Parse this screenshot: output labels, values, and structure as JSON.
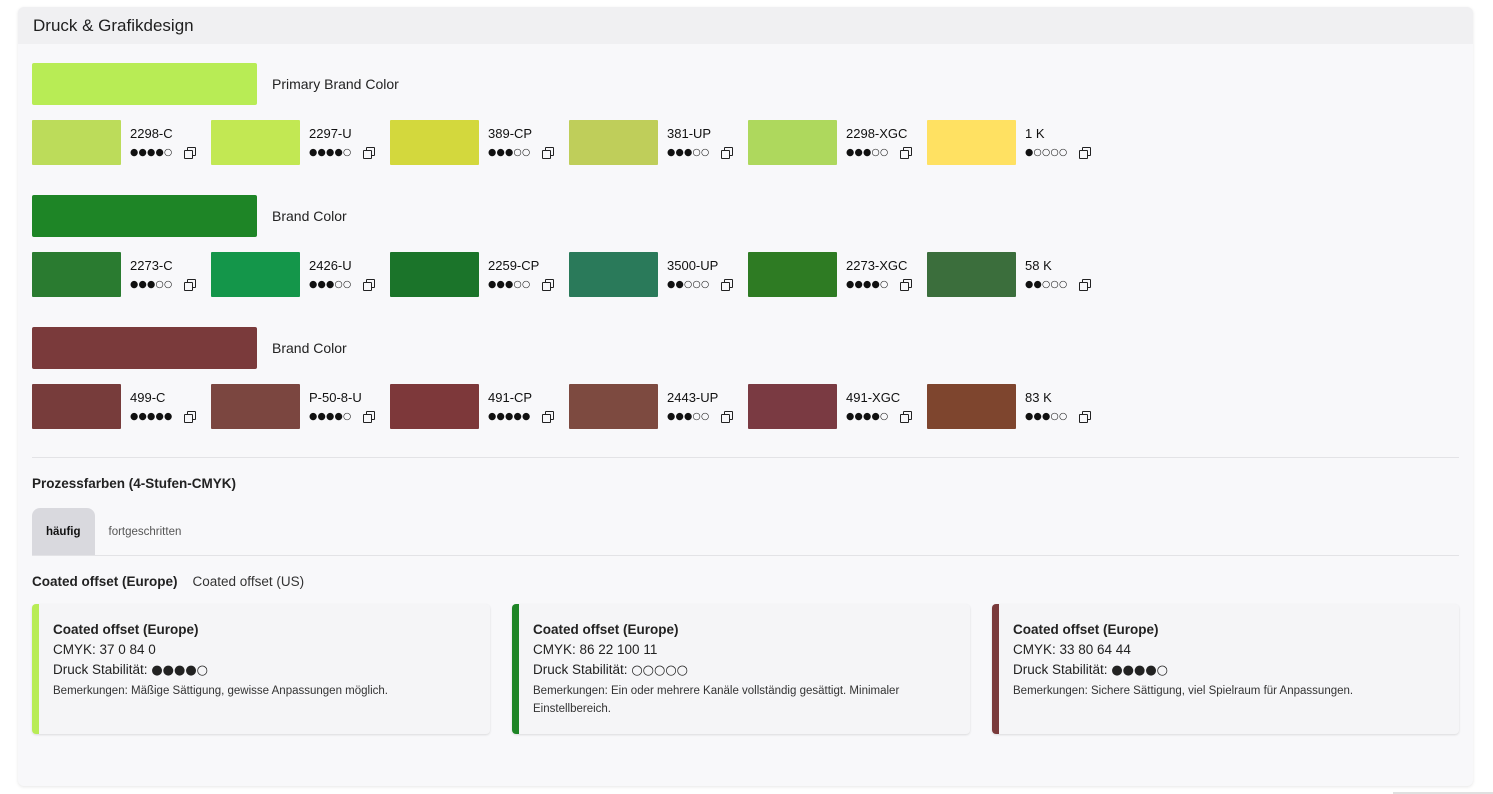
{
  "panel": {
    "title": "Druck & Grafikdesign"
  },
  "brand_colors": [
    {
      "label": "Primary Brand Color",
      "color": "#b8ec55",
      "variants": [
        {
          "name": "2298-C",
          "color": "#bcdc5a",
          "dots": "●●●●○"
        },
        {
          "name": "2297-U",
          "color": "#c2e853",
          "dots": "●●●●○"
        },
        {
          "name": "389-CP",
          "color": "#d3d83d",
          "dots": "●●●○○"
        },
        {
          "name": "381-UP",
          "color": "#bfce5a",
          "dots": "●●●○○"
        },
        {
          "name": "2298-XGC",
          "color": "#aed85d",
          "dots": "●●●○○"
        },
        {
          "name": "1 K",
          "color": "#ffe162",
          "dots": "●○○○○"
        }
      ]
    },
    {
      "label": "Brand Color",
      "color": "#1e8526",
      "variants": [
        {
          "name": "2273-C",
          "color": "#2a7b30",
          "dots": "●●●○○"
        },
        {
          "name": "2426-U",
          "color": "#14964a",
          "dots": "●●●○○"
        },
        {
          "name": "2259-CP",
          "color": "#1b742a",
          "dots": "●●●○○"
        },
        {
          "name": "3500-UP",
          "color": "#2a7a5a",
          "dots": "●●○○○"
        },
        {
          "name": "2273-XGC",
          "color": "#2e7b23",
          "dots": "●●●●○"
        },
        {
          "name": "58 K",
          "color": "#3b6e3c",
          "dots": "●●○○○"
        }
      ]
    },
    {
      "label": "Brand Color",
      "color": "#7a3a3b",
      "variants": [
        {
          "name": "499-C",
          "color": "#773c3b",
          "dots": "●●●●●"
        },
        {
          "name": "P-50-8-U",
          "color": "#7b4640",
          "dots": "●●●●○"
        },
        {
          "name": "491-CP",
          "color": "#7d383a",
          "dots": "●●●●●"
        },
        {
          "name": "2443-UP",
          "color": "#7d4a40",
          "dots": "●●●○○"
        },
        {
          "name": "491-XGC",
          "color": "#7a3a42",
          "dots": "●●●●○"
        },
        {
          "name": "83 K",
          "color": "#7e452e",
          "dots": "●●●○○"
        }
      ]
    }
  ],
  "process": {
    "title": "Prozessfarben (4-Stufen-CMYK)",
    "tabs": [
      {
        "label": "häufig",
        "active": true
      },
      {
        "label": "fortgeschritten",
        "active": false
      }
    ],
    "subtabs": [
      {
        "label": "Coated offset (Europe)",
        "active": true
      },
      {
        "label": "Coated offset (US)",
        "active": false
      }
    ],
    "cards": [
      {
        "title": "Coated offset (Europe)",
        "accent": "#b8ec55",
        "cmyk": "CMYK: 37 0 84 0",
        "stability_label": "Druck Stabilität:",
        "stability_dots": "●●●●○",
        "note": "Bemerkungen: Mäßige Sättigung, gewisse Anpassungen möglich."
      },
      {
        "title": "Coated offset (Europe)",
        "accent": "#1e8526",
        "cmyk": "CMYK: 86 22 100 11",
        "stability_label": "Druck Stabilität:",
        "stability_dots": "○○○○○",
        "note": "Bemerkungen: Ein oder mehrere Kanäle vollständig gesättigt. Minimaler Einstellbereich."
      },
      {
        "title": "Coated offset (Europe)",
        "accent": "#7a3a3b",
        "cmyk": "CMYK: 33 80 64 44",
        "stability_label": "Druck Stabilität:",
        "stability_dots": "●●●●○",
        "note": "Bemerkungen: Sichere Sättigung, viel Spielraum für Anpassungen."
      }
    ]
  }
}
